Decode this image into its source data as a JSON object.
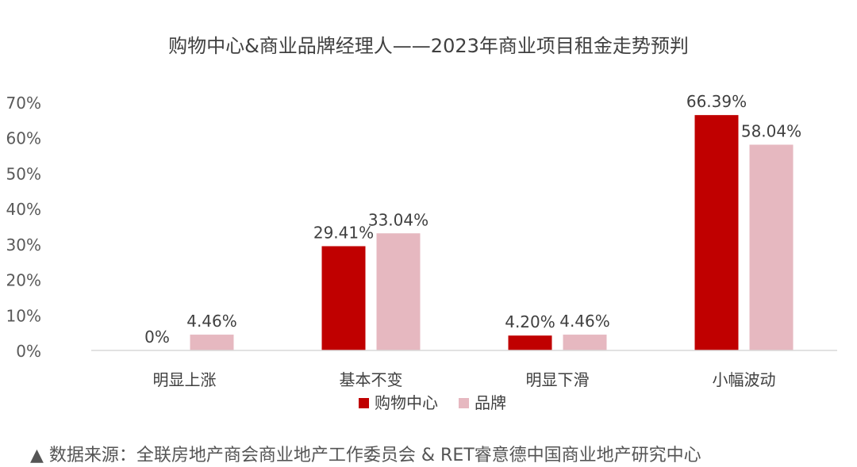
{
  "chart_data": {
    "type": "bar",
    "title": "购物中心&商业品牌经理人——2023年商业项目租金走势预判",
    "categories": [
      "明显上涨",
      "基本不变",
      "明显下滑",
      "小幅波动"
    ],
    "series": [
      {
        "name": "购物中心",
        "values": [
          0,
          29.41,
          4.2,
          66.39
        ],
        "labels": [
          "0%",
          "29.41%",
          "4.20%",
          "66.39%"
        ],
        "color": "#C00000"
      },
      {
        "name": "品牌",
        "values": [
          4.46,
          33.04,
          4.46,
          58.04
        ],
        "labels": [
          "4.46%",
          "33.04%",
          "4.46%",
          "58.04%"
        ],
        "color": "#E6B8C0"
      }
    ],
    "ylim": [
      0,
      70
    ],
    "yticks": [
      "0%",
      "10%",
      "20%",
      "30%",
      "40%",
      "50%",
      "60%",
      "70%"
    ],
    "grid": false,
    "legend": "bottom",
    "xlabel": "",
    "ylabel": ""
  },
  "source": "▲ 数据来源：全联房地产商会商业地产工作委员会 & RET睿意德中国商业地产研究中心"
}
